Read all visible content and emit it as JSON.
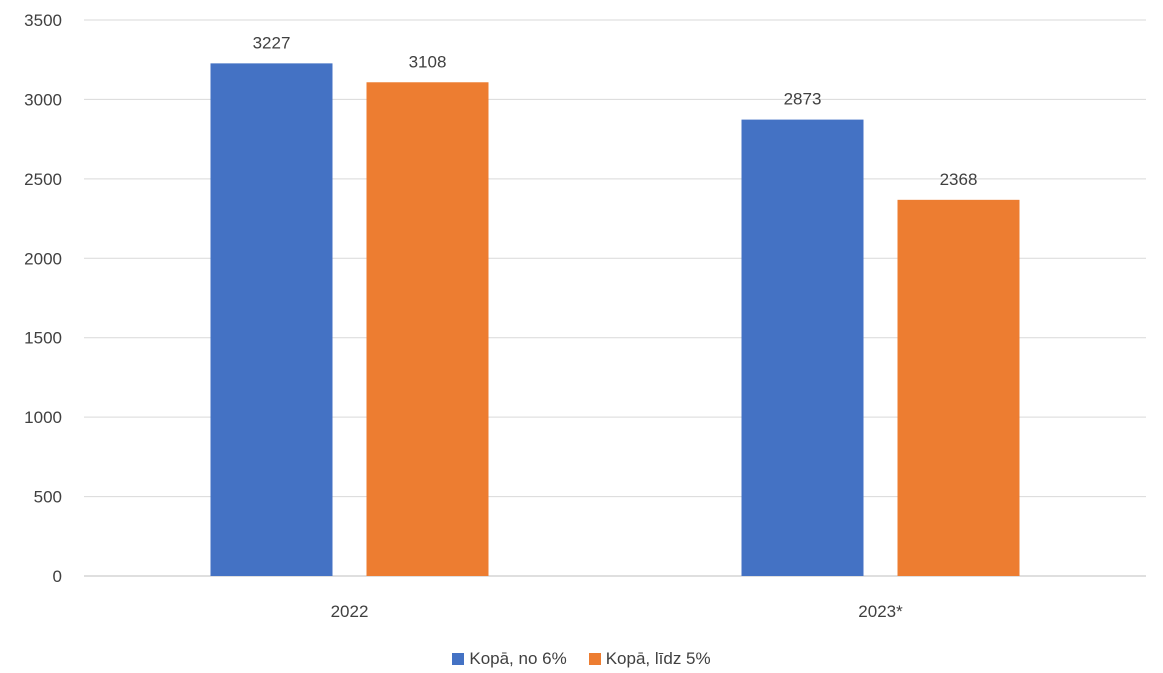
{
  "chart_data": {
    "type": "bar",
    "categories": [
      "2022",
      "2023*"
    ],
    "series": [
      {
        "name": "Kopā, no 6%",
        "values": [
          3227,
          2873
        ],
        "color": "#4472C4"
      },
      {
        "name": "Kopā, līdz 5%",
        "values": [
          3108,
          2368
        ],
        "color": "#ED7D31"
      }
    ],
    "ylim": [
      0,
      3500
    ],
    "yticks": [
      0,
      500,
      1000,
      1500,
      2000,
      2500,
      3000,
      3500
    ],
    "grid": true,
    "legend_position": "bottom",
    "data_labels": true
  }
}
